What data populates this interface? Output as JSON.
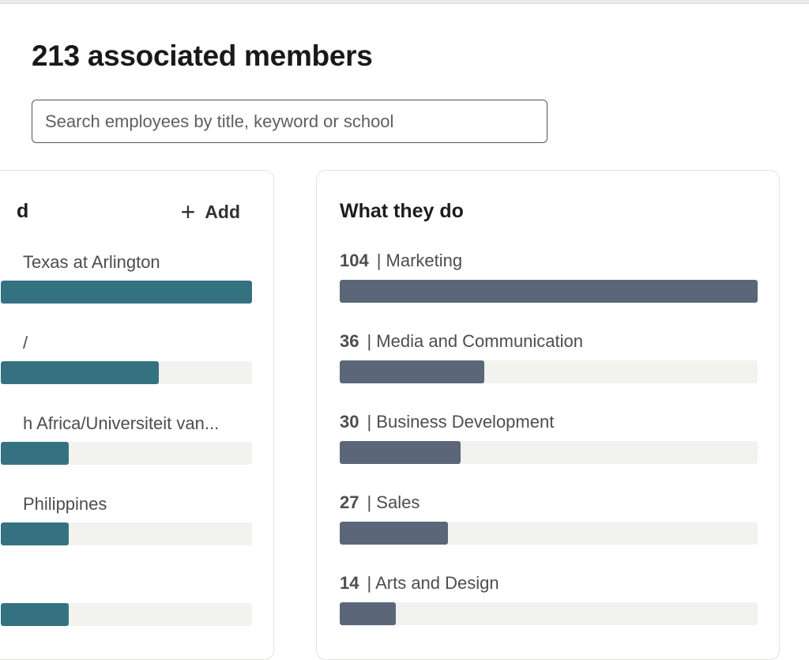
{
  "header": {
    "title": "213 associated members",
    "search_placeholder": "Search employees by title, keyword or school"
  },
  "colors": {
    "study_bar": "#357281",
    "function_bar": "#5b6779",
    "track": "#f2f2ef"
  },
  "where_they_studied": {
    "title_visible": "d",
    "add_label": "Add",
    "add_icon": "plus-icon",
    "items": [
      {
        "label": "Texas at Arlington",
        "fill": 1.0
      },
      {
        "label": "/",
        "fill": 0.63
      },
      {
        "label": "h Africa/Universiteit van...",
        "fill": 0.27
      },
      {
        "label": "Philippines",
        "fill": 0.27
      },
      {
        "label": "",
        "fill": 0.27
      }
    ]
  },
  "what_they_do": {
    "title": "What they do",
    "items": [
      {
        "count": "104",
        "label": "| Marketing",
        "value": 104
      },
      {
        "count": "36",
        "label": "| Media and Communication",
        "value": 36
      },
      {
        "count": "30",
        "label": "| Business Development",
        "value": 30
      },
      {
        "count": "27",
        "label": "| Sales",
        "value": 27
      },
      {
        "count": "14",
        "label": "| Arts and Design",
        "value": 14
      }
    ],
    "max": 104
  }
}
